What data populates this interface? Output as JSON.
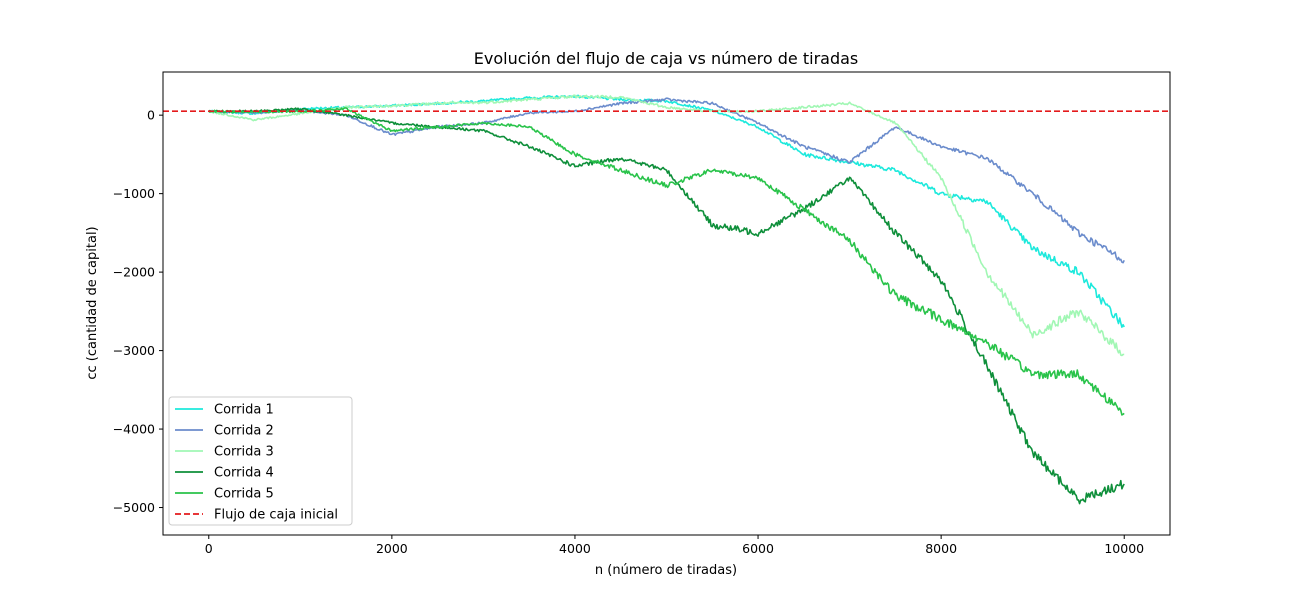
{
  "chart_data": {
    "type": "line",
    "title": "Evolución del flujo de caja vs número de tiradas",
    "xlabel": "n (número de tiradas)",
    "ylabel": "cc (cantidad de capital)",
    "xlim": [
      -500,
      10500
    ],
    "ylim": [
      -5350,
      550
    ],
    "xticks": [
      0,
      2000,
      4000,
      6000,
      8000,
      10000
    ],
    "yticks": [
      0,
      -1000,
      -2000,
      -3000,
      -4000,
      -5000
    ],
    "grid": false,
    "legend_position": "lower-left",
    "initial_cashflow": 50,
    "reference_line": {
      "name": "Flujo de caja inicial",
      "y": 50,
      "color": "#e41a1c",
      "style": "dashed"
    },
    "series": [
      {
        "name": "Corrida 1",
        "color": "#1de9dc",
        "x": [
          0,
          500,
          1000,
          1500,
          2000,
          2500,
          3000,
          3500,
          4000,
          4500,
          5000,
          5500,
          6000,
          6500,
          7000,
          7500,
          8000,
          8500,
          9000,
          9500,
          10000
        ],
        "y": [
          50,
          20,
          80,
          100,
          120,
          150,
          180,
          220,
          240,
          200,
          180,
          60,
          -150,
          -500,
          -600,
          -700,
          -1000,
          -1100,
          -1700,
          -2000,
          -2700
        ]
      },
      {
        "name": "Corrida 2",
        "color": "#6b8ccc",
        "x": [
          0,
          500,
          1000,
          1500,
          2000,
          2500,
          3000,
          3500,
          4000,
          4500,
          5000,
          5500,
          6000,
          6500,
          7000,
          7500,
          8000,
          8500,
          9000,
          9500,
          10000
        ],
        "y": [
          50,
          30,
          60,
          0,
          -250,
          -150,
          -100,
          30,
          50,
          150,
          200,
          150,
          -100,
          -400,
          -600,
          -150,
          -400,
          -550,
          -1000,
          -1500,
          -1850
        ]
      },
      {
        "name": "Corrida 3",
        "color": "#a1f7b4",
        "x": [
          0,
          500,
          1000,
          1500,
          2000,
          2500,
          3000,
          3500,
          4000,
          4500,
          5000,
          5500,
          6000,
          6500,
          7000,
          7500,
          8000,
          8500,
          9000,
          9500,
          10000
        ],
        "y": [
          50,
          -60,
          20,
          100,
          120,
          150,
          160,
          200,
          240,
          230,
          100,
          50,
          50,
          100,
          150,
          -100,
          -800,
          -2000,
          -2800,
          -2500,
          -3050
        ]
      },
      {
        "name": "Corrida 4",
        "color": "#0e8f3a",
        "x": [
          0,
          500,
          1000,
          1500,
          2000,
          2500,
          3000,
          3500,
          4000,
          4500,
          5000,
          5500,
          6000,
          6500,
          7000,
          7500,
          8000,
          8500,
          9000,
          9500,
          10000
        ],
        "y": [
          50,
          50,
          80,
          0,
          -100,
          -150,
          -200,
          -400,
          -650,
          -550,
          -700,
          -1400,
          -1500,
          -1200,
          -800,
          -1500,
          -2100,
          -3200,
          -4300,
          -4900,
          -4700
        ]
      },
      {
        "name": "Corrida 5",
        "color": "#29c34a",
        "x": [
          0,
          500,
          1000,
          1500,
          2000,
          2500,
          3000,
          3500,
          4000,
          4500,
          5000,
          5500,
          6000,
          6500,
          7000,
          7500,
          8000,
          8500,
          9000,
          9500,
          10000
        ],
        "y": [
          50,
          40,
          50,
          80,
          -200,
          -150,
          -100,
          -150,
          -500,
          -700,
          -900,
          -700,
          -800,
          -1200,
          -1600,
          -2300,
          -2600,
          -2900,
          -3300,
          -3300,
          -3800
        ]
      }
    ]
  }
}
